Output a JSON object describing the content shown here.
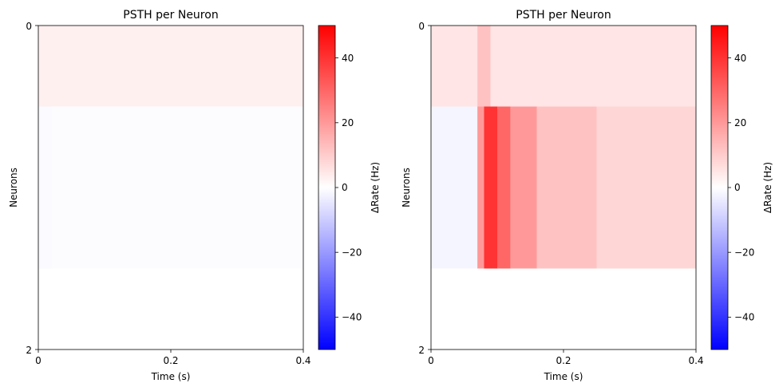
{
  "chart_data": [
    {
      "type": "heatmap",
      "title": "PSTH per Neuron",
      "xlabel": "Time (s)",
      "ylabel": "Neurons",
      "xlim": [
        0,
        0.4
      ],
      "ylim": [
        2,
        0
      ],
      "x_ticks": [
        "0",
        "0.2",
        "0.4"
      ],
      "y_ticks": [
        "0",
        "2"
      ],
      "x_tick_values": [
        0,
        0.2,
        0.4
      ],
      "y_tick_values": [
        0,
        2
      ],
      "rows": [
        {
          "neuron_span": [
            0,
            0.5
          ],
          "segments": [
            {
              "t": [
                0,
                0.4
              ],
              "value": 3
            }
          ]
        },
        {
          "neuron_span": [
            0.5,
            1.5
          ],
          "segments": [
            {
              "t": [
                0,
                0.02
              ],
              "value": -1
            },
            {
              "t": [
                0.02,
                0.4
              ],
              "value": -0.5
            }
          ]
        }
      ],
      "colorbar": {
        "label": "ΔRate (Hz)",
        "range": [
          -50,
          50
        ],
        "ticks": [
          "−40",
          "−20",
          "0",
          "20",
          "40"
        ],
        "tick_values": [
          -40,
          -20,
          0,
          20,
          40
        ],
        "colormap": "bwr"
      }
    },
    {
      "type": "heatmap",
      "title": "PSTH per Neuron",
      "xlabel": "Time (s)",
      "ylabel": "Neurons",
      "xlim": [
        0,
        0.4
      ],
      "ylim": [
        2,
        0
      ],
      "x_ticks": [
        "0",
        "0.2",
        "0.4"
      ],
      "y_ticks": [
        "0",
        "2"
      ],
      "x_tick_values": [
        0,
        0.2,
        0.4
      ],
      "y_tick_values": [
        0,
        2
      ],
      "rows": [
        {
          "neuron_span": [
            0,
            0.5
          ],
          "segments": [
            {
              "t": [
                0,
                0.07
              ],
              "value": 5
            },
            {
              "t": [
                0.07,
                0.09
              ],
              "value": 12
            },
            {
              "t": [
                0.09,
                0.4
              ],
              "value": 5
            }
          ]
        },
        {
          "neuron_span": [
            0.5,
            1.5
          ],
          "segments": [
            {
              "t": [
                0,
                0.07
              ],
              "value": -2
            },
            {
              "t": [
                0.07,
                0.08
              ],
              "value": 20
            },
            {
              "t": [
                0.08,
                0.1
              ],
              "value": 40
            },
            {
              "t": [
                0.1,
                0.12
              ],
              "value": 30
            },
            {
              "t": [
                0.12,
                0.16
              ],
              "value": 20
            },
            {
              "t": [
                0.16,
                0.25
              ],
              "value": 12
            },
            {
              "t": [
                0.25,
                0.4
              ],
              "value": 8
            }
          ]
        }
      ],
      "colorbar": {
        "label": "ΔRate (Hz)",
        "range": [
          -50,
          50
        ],
        "ticks": [
          "−40",
          "−20",
          "0",
          "20",
          "40"
        ],
        "tick_values": [
          -40,
          -20,
          0,
          20,
          40
        ],
        "colormap": "bwr"
      }
    }
  ]
}
